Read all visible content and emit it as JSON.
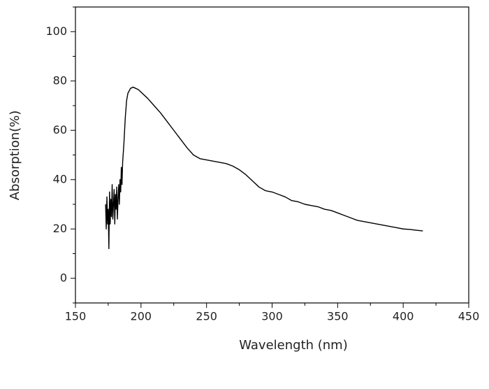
{
  "chart_data": {
    "type": "line",
    "xlabel": "Wavelength (nm)",
    "ylabel": "Absorption(%)",
    "xlim": [
      150,
      450
    ],
    "xticks": [
      150,
      200,
      250,
      300,
      350,
      400,
      450
    ],
    "xminorticks": [
      175,
      225,
      275,
      325,
      375,
      425
    ],
    "ylim": [
      -10,
      110
    ],
    "yticks": [
      0,
      20,
      40,
      60,
      80,
      100
    ],
    "yminorticks": [
      -10,
      10,
      30,
      50,
      70,
      90,
      110
    ],
    "grid": false,
    "series": [
      {
        "color": "#000000",
        "x": [
          173,
          173.5,
          174,
          174.5,
          175,
          175.5,
          176,
          176.5,
          177,
          177.5,
          178,
          178.5,
          179,
          179.5,
          180,
          180.5,
          181,
          181.5,
          182,
          182.5,
          183,
          183.5,
          184,
          184.5,
          185,
          185.5,
          186,
          187,
          188,
          189,
          190,
          192,
          194,
          196,
          198,
          200,
          205,
          210,
          215,
          220,
          225,
          230,
          235,
          240,
          245,
          250,
          255,
          260,
          265,
          270,
          275,
          280,
          285,
          290,
          295,
          300,
          305,
          310,
          315,
          320,
          325,
          330,
          335,
          340,
          345,
          350,
          355,
          360,
          365,
          370,
          375,
          380,
          385,
          390,
          395,
          400,
          405,
          410,
          415
        ],
        "values": [
          30,
          20,
          33,
          22,
          28,
          12,
          35,
          22,
          32,
          25,
          38,
          24,
          30,
          36,
          22,
          34,
          28,
          37,
          24,
          32,
          38,
          30,
          40,
          35,
          45,
          38,
          47,
          55,
          65,
          72,
          75,
          77,
          77.5,
          77,
          76.5,
          75.5,
          73,
          70,
          67,
          63.5,
          60,
          56.5,
          53,
          50,
          48.5,
          48,
          47.5,
          47,
          46.5,
          45.5,
          44,
          42,
          39.5,
          37,
          35.5,
          35,
          34,
          33,
          31.5,
          31,
          30,
          29.5,
          29,
          28,
          27.5,
          26.5,
          25.5,
          24.5,
          23.5,
          23,
          22.5,
          22,
          21.5,
          21,
          20.5,
          20,
          19.8,
          19.5,
          19.2
        ]
      }
    ]
  }
}
